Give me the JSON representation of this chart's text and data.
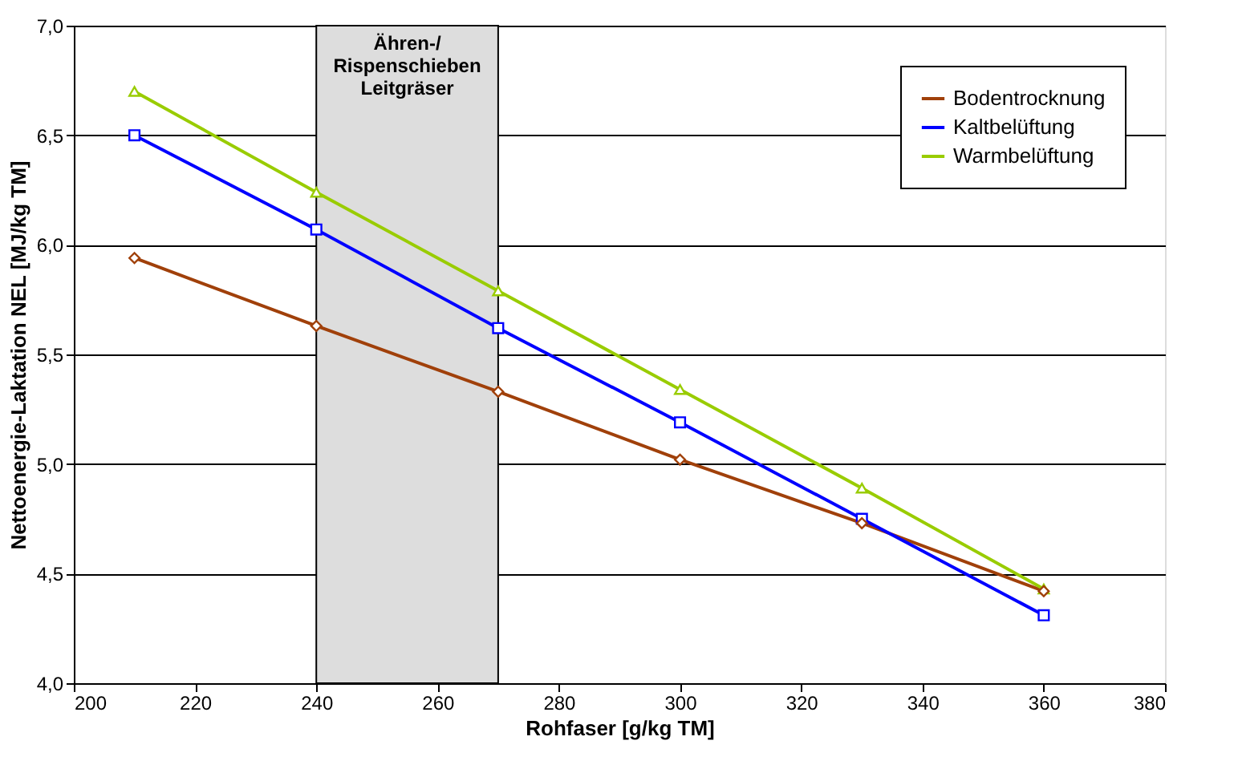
{
  "chart_data": {
    "type": "line",
    "xlabel": "Rohfaser [g/kg TM]",
    "ylabel": "Nettoenergie-Laktation NEL [MJ/kg TM]",
    "x": [
      210,
      240,
      270,
      300,
      330,
      360
    ],
    "series": [
      {
        "name": "Bodentrocknung",
        "color": "#a0400a",
        "marker": "diamond",
        "values": [
          5.94,
          5.63,
          5.33,
          5.02,
          4.73,
          4.42
        ]
      },
      {
        "name": "Kaltbelüftung",
        "color": "#0000ff",
        "marker": "square",
        "values": [
          6.5,
          6.07,
          5.62,
          5.19,
          4.75,
          4.31
        ]
      },
      {
        "name": "Warmbelüftung",
        "color": "#99cc00",
        "marker": "triangle",
        "values": [
          6.7,
          6.24,
          5.79,
          5.34,
          4.89,
          4.43
        ]
      }
    ],
    "bands": [
      {
        "axis": "x",
        "from": 240,
        "to": 270,
        "label": "Ähren-/\nRispenschieben\nLeitgräser",
        "color": "#dddddd"
      }
    ],
    "xlim": [
      200,
      380
    ],
    "xticks": [
      200,
      220,
      240,
      260,
      280,
      300,
      320,
      340,
      360,
      380
    ],
    "ylim": [
      4.0,
      7.0
    ],
    "yticks": [
      {
        "value": 4.0,
        "label": "4,0"
      },
      {
        "value": 4.5,
        "label": "4,5"
      },
      {
        "value": 5.0,
        "label": "5,0"
      },
      {
        "value": 5.5,
        "label": "5,5"
      },
      {
        "value": 6.0,
        "label": "6,0"
      },
      {
        "value": 6.5,
        "label": "6,5"
      },
      {
        "value": 7.0,
        "label": "7,0"
      }
    ],
    "grid": "y",
    "legend": "top right",
    "line_style": "solid"
  }
}
